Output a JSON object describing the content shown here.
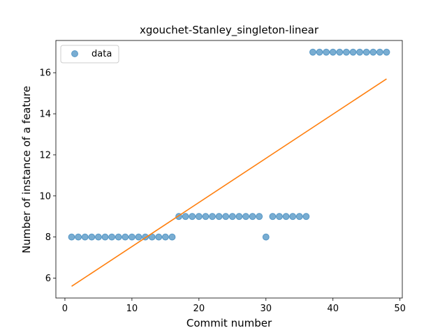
{
  "chart_data": {
    "type": "scatter",
    "title": "xgouchet-Stanley_singleton-linear",
    "xlabel": "Commit number",
    "ylabel": "Number of instance of a feature",
    "xlim": [
      -1.35,
      50.35
    ],
    "ylim": [
      5.03,
      17.57
    ],
    "xticks": [
      0,
      10,
      20,
      30,
      40,
      50
    ],
    "yticks": [
      6,
      8,
      10,
      12,
      14,
      16
    ],
    "legend_position": "upper-left",
    "series": [
      {
        "name": "data",
        "kind": "scatter",
        "color": "#1f77b4",
        "x": [
          1,
          2,
          3,
          4,
          5,
          6,
          7,
          8,
          9,
          10,
          11,
          12,
          13,
          14,
          15,
          16,
          17,
          18,
          19,
          20,
          21,
          22,
          23,
          24,
          25,
          26,
          27,
          28,
          29,
          30,
          31,
          32,
          33,
          34,
          35,
          36,
          37,
          38,
          39,
          40,
          41,
          42,
          43,
          44,
          45,
          46,
          47,
          48
        ],
        "y": [
          8,
          8,
          8,
          8,
          8,
          8,
          8,
          8,
          8,
          8,
          8,
          8,
          8,
          8,
          8,
          8,
          9,
          9,
          9,
          9,
          9,
          9,
          9,
          9,
          9,
          9,
          9,
          9,
          9,
          8,
          9,
          9,
          9,
          9,
          9,
          9,
          17,
          17,
          17,
          17,
          17,
          17,
          17,
          17,
          17,
          17,
          17,
          17
        ]
      },
      {
        "kind": "line",
        "color": "#ff7f0e",
        "x": [
          1,
          48
        ],
        "y": [
          5.6,
          15.7
        ]
      }
    ]
  }
}
